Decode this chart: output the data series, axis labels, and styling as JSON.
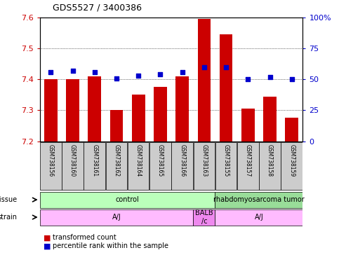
{
  "title": "GDS5527 / 3400386",
  "samples": [
    "GSM738156",
    "GSM738160",
    "GSM738161",
    "GSM738162",
    "GSM738164",
    "GSM738165",
    "GSM738166",
    "GSM738163",
    "GSM738155",
    "GSM738157",
    "GSM738158",
    "GSM738159"
  ],
  "bar_values": [
    7.4,
    7.4,
    7.41,
    7.3,
    7.35,
    7.375,
    7.41,
    7.595,
    7.545,
    7.305,
    7.345,
    7.275
  ],
  "percentile_values": [
    56,
    57,
    56,
    51,
    53,
    54,
    56,
    60,
    60,
    50,
    52,
    50
  ],
  "ylim": [
    7.2,
    7.6
  ],
  "y2lim": [
    0,
    100
  ],
  "yticks": [
    7.2,
    7.3,
    7.4,
    7.5,
    7.6
  ],
  "y2ticks": [
    0,
    25,
    50,
    75,
    100
  ],
  "bar_color": "#cc0000",
  "dot_color": "#0000cc",
  "bar_width": 0.6,
  "tissue_labels": [
    {
      "label": "control",
      "start": 0,
      "end": 8,
      "color": "#bbffbb"
    },
    {
      "label": "rhabdomyosarcoma tumor",
      "start": 8,
      "end": 12,
      "color": "#99dd99"
    }
  ],
  "strain_labels": [
    {
      "label": "A/J",
      "start": 0,
      "end": 7,
      "color": "#ffbbff"
    },
    {
      "label": "BALB\n/c",
      "start": 7,
      "end": 8,
      "color": "#ee88ee"
    },
    {
      "label": "A/J",
      "start": 8,
      "end": 12,
      "color": "#ffbbff"
    }
  ],
  "legend_items": [
    {
      "color": "#cc0000",
      "label": "transformed count"
    },
    {
      "color": "#0000cc",
      "label": "percentile rank within the sample"
    }
  ],
  "bg_color": "#ffffff",
  "tick_label_color_left": "#cc0000",
  "tick_label_color_right": "#0000cc",
  "xticklabel_bg": "#cccccc",
  "grid_color": "#000000"
}
